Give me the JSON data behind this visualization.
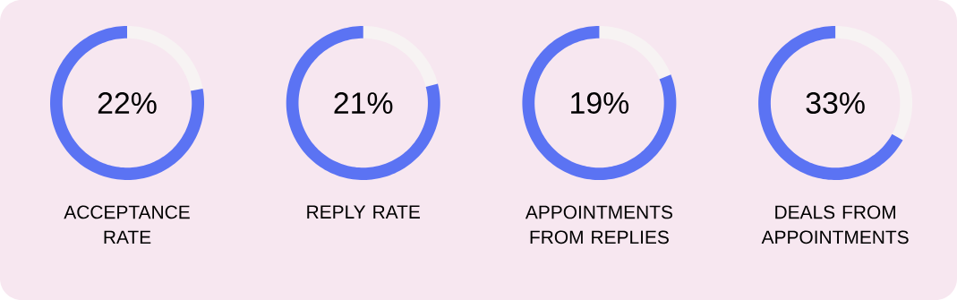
{
  "chart_data": [
    {
      "type": "donut",
      "title": "ACCEPTANCE RATE",
      "categories": [
        null,
        null
      ],
      "values": [
        22,
        78
      ],
      "colors": [
        "#f7f3f3",
        "#5b73f3"
      ],
      "annotations": [
        "22%"
      ]
    },
    {
      "type": "donut",
      "title": "REPLY RATE",
      "categories": [
        null,
        null
      ],
      "values": [
        21,
        79
      ],
      "colors": [
        "#f7f3f3",
        "#5b73f3"
      ],
      "annotations": [
        "21%"
      ]
    },
    {
      "type": "donut",
      "title": "APPOINTMENTS FROM REPLIES",
      "categories": [
        null,
        null
      ],
      "values": [
        19,
        81
      ],
      "colors": [
        "#f7f3f3",
        "#5b73f3"
      ],
      "annotations": [
        "19%"
      ]
    },
    {
      "type": "donut",
      "title": "DEALS FROM APPOINTMENTS",
      "categories": [
        null,
        null
      ],
      "values": [
        33,
        67
      ],
      "colors": [
        "#f7f3f3",
        "#5b73f3"
      ],
      "annotations": [
        "33%"
      ]
    }
  ]
}
